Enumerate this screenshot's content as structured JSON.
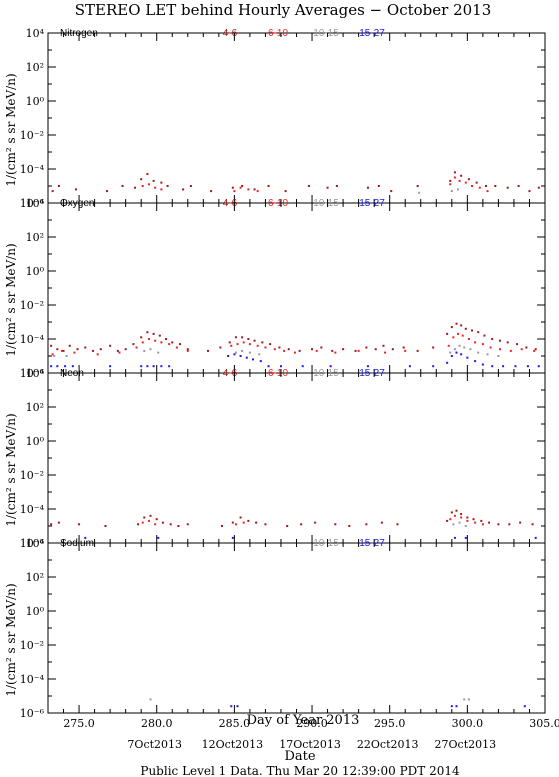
{
  "title": "STEREO LET behind Hourly Averages − October 2013",
  "x_axis_label": "Day of Year 2013",
  "x_tick_labels": [
    "275.0",
    "280.0",
    "285.0",
    "290.0",
    "295.0",
    "300.0",
    "305.0"
  ],
  "date_axis_label": "Date",
  "date_labels": [
    "7Oct2013",
    "12Oct2013",
    "17Oct2013",
    "22Oct2013",
    "27Oct2013"
  ],
  "footer": "Public Level 1 Data. Thu Mar 20 12:39:00 PDT 2014",
  "y_axis_label": "1/(cm² s sr MeV/n)",
  "energy_colors": {
    "4-6": "#a01818",
    "6-10": "#ee2222",
    "10-15": "#999999",
    "15-27": "#1a1aee"
  },
  "chart_data": [
    {
      "type": "scatter",
      "element": "Nitrogen",
      "legend": [
        "4-6",
        "6-10",
        "10-15",
        "15-27"
      ],
      "xlim": [
        273.0,
        305.0
      ],
      "ylim_exponent": [
        -6,
        4
      ],
      "y_scale": "log",
      "y_tick_labels": [
        "10⁴",
        "10²",
        "10⁰",
        "10⁻²",
        "10⁻⁴",
        "10⁻⁶"
      ],
      "grid": false,
      "series": [
        {
          "name": "4-6",
          "x": [
            273.3,
            273.7,
            274.8,
            276.8,
            277.8,
            278.6,
            279.0,
            279.4,
            279.8,
            280.3,
            280.7,
            281.7,
            282.2,
            283.5,
            284.9,
            285.5,
            286.3,
            287.2,
            288.3,
            289.8,
            291.0,
            291.6,
            293.6,
            294.3,
            295.1,
            296.8,
            298.9,
            299.2,
            299.6,
            300.1,
            300.6,
            301.2,
            301.8,
            302.6,
            303.3,
            304.0,
            304.6
          ],
          "y": [
            -5.3,
            -5.0,
            -5.2,
            -5.3,
            -5.0,
            -5.1,
            -4.6,
            -4.3,
            -4.7,
            -4.8,
            -5.0,
            -5.2,
            -5.0,
            -5.3,
            -5.1,
            -5.0,
            -5.2,
            -5.0,
            -5.3,
            -5.0,
            -5.1,
            -5.0,
            -5.1,
            -5.0,
            -5.3,
            -5.0,
            -4.7,
            -4.2,
            -4.4,
            -4.6,
            -4.8,
            -5.0,
            -5.0,
            -5.1,
            -5.0,
            -5.3,
            -5.1
          ]
        },
        {
          "name": "6-10",
          "x": [
            279.1,
            279.5,
            279.9,
            280.3,
            285.0,
            285.4,
            285.9,
            286.5,
            298.9,
            299.2,
            299.5,
            299.9,
            300.3,
            300.8,
            301.3
          ],
          "y": [
            -5.0,
            -4.9,
            -5.1,
            -5.2,
            -5.3,
            -5.1,
            -5.2,
            -5.3,
            -4.9,
            -4.5,
            -4.7,
            -4.8,
            -5.0,
            -5.1,
            -5.3
          ]
        },
        {
          "name": "10-15",
          "x": [
            296.9,
            299.0,
            299.4
          ],
          "y": [
            -5.4,
            -5.3,
            -5.2
          ]
        },
        {
          "name": "15-27",
          "x": [],
          "y": []
        }
      ]
    },
    {
      "type": "scatter",
      "element": "Oxygen",
      "legend": [
        "4-6",
        "6-10",
        "10-15",
        "15-27"
      ],
      "xlim": [
        273.0,
        305.0
      ],
      "ylim_exponent": [
        -6,
        4
      ],
      "y_scale": "log",
      "y_tick_labels": [
        "10⁴",
        "10²",
        "10⁰",
        "10⁻²",
        "10⁻⁴",
        "10⁻⁶"
      ],
      "grid": false,
      "series": [
        {
          "name": "4-6",
          "x": [
            273.2,
            273.6,
            274.0,
            274.4,
            274.9,
            275.4,
            275.9,
            276.4,
            277.0,
            277.5,
            278.0,
            278.5,
            279.0,
            279.4,
            279.8,
            280.2,
            280.6,
            281.0,
            281.5,
            282.0,
            283.3,
            284.1,
            284.7,
            285.1,
            285.5,
            285.9,
            286.3,
            286.8,
            287.3,
            287.9,
            288.5,
            289.2,
            290.0,
            290.6,
            291.3,
            292.0,
            292.8,
            293.5,
            294.1,
            294.6,
            295.2,
            295.9,
            296.8,
            297.8,
            298.7,
            299.0,
            299.3,
            299.6,
            299.9,
            300.3,
            300.7,
            301.1,
            301.6,
            302.1,
            302.6,
            303.2,
            303.8,
            304.4
          ],
          "y": [
            -4.4,
            -4.6,
            -4.7,
            -4.4,
            -4.6,
            -4.5,
            -4.7,
            -4.6,
            -4.4,
            -4.7,
            -4.6,
            -4.3,
            -3.9,
            -3.6,
            -3.7,
            -3.8,
            -4.0,
            -4.2,
            -4.3,
            -4.6,
            -4.7,
            -4.5,
            -4.2,
            -3.9,
            -3.9,
            -4.0,
            -4.1,
            -4.2,
            -4.3,
            -4.5,
            -4.6,
            -4.7,
            -4.6,
            -4.5,
            -4.7,
            -4.6,
            -4.7,
            -4.5,
            -4.6,
            -4.4,
            -4.6,
            -4.5,
            -4.7,
            -4.5,
            -3.7,
            -3.3,
            -3.1,
            -3.2,
            -3.4,
            -3.5,
            -3.6,
            -3.8,
            -4.0,
            -4.1,
            -4.2,
            -4.3,
            -4.5,
            -4.6
          ]
        },
        {
          "name": "6-10",
          "x": [
            273.3,
            273.9,
            274.7,
            276.2,
            277.6,
            278.7,
            279.1,
            279.5,
            279.9,
            280.3,
            280.8,
            281.3,
            282.0,
            284.8,
            285.2,
            285.6,
            286.0,
            286.5,
            287.0,
            287.6,
            288.2,
            288.9,
            290.3,
            291.5,
            293.0,
            294.7,
            296.0,
            298.8,
            299.1,
            299.4,
            299.7,
            300.1,
            300.5,
            301.0,
            301.5,
            302.1,
            302.8,
            303.5,
            304.3
          ],
          "y": [
            -4.9,
            -4.7,
            -4.8,
            -4.9,
            -4.8,
            -4.5,
            -4.2,
            -4.0,
            -4.1,
            -4.2,
            -4.3,
            -4.5,
            -4.7,
            -4.4,
            -4.3,
            -4.2,
            -4.3,
            -4.4,
            -4.5,
            -4.6,
            -4.7,
            -4.8,
            -4.7,
            -4.8,
            -4.7,
            -4.8,
            -4.7,
            -4.4,
            -3.9,
            -3.7,
            -3.8,
            -4.0,
            -4.2,
            -4.3,
            -4.5,
            -4.6,
            -4.7,
            -4.6,
            -4.7
          ]
        },
        {
          "name": "10-15",
          "x": [
            273.4,
            274.2,
            279.2,
            279.6,
            280.1,
            285.1,
            285.5,
            286.0,
            286.6,
            298.9,
            299.2,
            299.5,
            299.8,
            300.2,
            300.7,
            301.3,
            302.0
          ],
          "y": [
            -5.0,
            -5.0,
            -4.7,
            -4.6,
            -4.8,
            -4.8,
            -4.7,
            -4.8,
            -4.9,
            -4.8,
            -4.6,
            -4.4,
            -4.5,
            -4.6,
            -4.8,
            -4.9,
            -5.0
          ]
        },
        {
          "name": "15-27",
          "x": [
            273.2,
            273.6,
            274.1,
            274.6,
            277.0,
            279.0,
            279.4,
            279.8,
            280.3,
            280.8,
            284.6,
            285.0,
            285.4,
            285.8,
            286.2,
            286.7,
            287.2,
            288.0,
            289.4,
            291.2,
            293.6,
            296.3,
            297.8,
            298.7,
            299.0,
            299.3,
            299.6,
            300.0,
            300.5,
            301.0,
            301.6,
            302.3,
            303.1,
            303.9,
            304.6
          ],
          "y": [
            -5.6,
            -5.6,
            -5.6,
            -5.6,
            -5.6,
            -5.6,
            -5.6,
            -5.6,
            -5.6,
            -5.6,
            -5.0,
            -4.9,
            -5.0,
            -5.1,
            -5.2,
            -5.3,
            -5.6,
            -5.6,
            -5.6,
            -5.6,
            -5.6,
            -5.6,
            -5.6,
            -5.4,
            -5.0,
            -4.8,
            -4.9,
            -5.1,
            -5.3,
            -5.5,
            -5.6,
            -5.6,
            -5.6,
            -5.6,
            -5.6
          ]
        }
      ]
    },
    {
      "type": "scatter",
      "element": "Neon",
      "legend": [
        "4-6",
        "6-10",
        "10-15",
        "15-27"
      ],
      "xlim": [
        273.0,
        305.0
      ],
      "ylim_exponent": [
        -6,
        4
      ],
      "y_scale": "log",
      "y_tick_labels": [
        "10⁴",
        "10²",
        "10⁰",
        "10⁻²",
        "10⁻⁴",
        "10⁻⁶"
      ],
      "grid": false,
      "series": [
        {
          "name": "4-6",
          "x": [
            273.2,
            273.7,
            275.0,
            276.7,
            278.8,
            279.2,
            279.6,
            280.0,
            280.4,
            280.9,
            281.4,
            282.0,
            284.2,
            284.9,
            285.4,
            285.9,
            286.4,
            287.0,
            288.4,
            289.3,
            290.2,
            291.5,
            292.4,
            293.5,
            294.5,
            295.5,
            298.7,
            299.0,
            299.3,
            299.6,
            300.0,
            300.4,
            300.9,
            301.4,
            302.0,
            302.7,
            303.4,
            304.2
          ],
          "y": [
            -4.9,
            -4.8,
            -4.9,
            -5.0,
            -4.9,
            -4.5,
            -4.4,
            -4.6,
            -4.8,
            -4.9,
            -5.0,
            -4.9,
            -5.0,
            -4.8,
            -4.5,
            -4.7,
            -4.8,
            -4.9,
            -5.0,
            -4.9,
            -4.8,
            -4.9,
            -5.0,
            -4.9,
            -4.8,
            -4.9,
            -4.7,
            -4.2,
            -4.1,
            -4.3,
            -4.5,
            -4.6,
            -4.7,
            -4.8,
            -4.9,
            -4.9,
            -4.8,
            -4.9
          ]
        },
        {
          "name": "6-10",
          "x": [
            279.1,
            279.5,
            279.9,
            285.1,
            285.6,
            298.9,
            299.2,
            299.6,
            300.0,
            300.5,
            301.0
          ],
          "y": [
            -4.8,
            -4.7,
            -4.9,
            -4.9,
            -4.8,
            -4.6,
            -4.4,
            -4.5,
            -4.7,
            -4.8,
            -4.9
          ]
        },
        {
          "name": "10-15",
          "x": [
            299.1,
            299.5,
            299.9
          ],
          "y": [
            -4.9,
            -4.8,
            -5.0
          ]
        },
        {
          "name": "15-27",
          "x": [
            275.4,
            280.1,
            284.9,
            299.2,
            299.9,
            304.4
          ],
          "y": [
            -5.7,
            -5.7,
            -5.7,
            -5.7,
            -5.7,
            -5.7
          ]
        }
      ]
    },
    {
      "type": "scatter",
      "element": "Sodium",
      "legend": [
        "10-15",
        "15-27"
      ],
      "xlim": [
        273.0,
        305.0
      ],
      "ylim_exponent": [
        -6,
        4
      ],
      "y_scale": "log",
      "y_tick_labels": [
        "10⁴",
        "10²",
        "10⁰",
        "10⁻²",
        "10⁻⁴",
        "10⁻⁶"
      ],
      "grid": false,
      "series": [
        {
          "name": "10-15",
          "x": [
            279.6,
            299.8,
            300.1
          ],
          "y": [
            -5.2,
            -5.2,
            -5.2
          ]
        },
        {
          "name": "15-27",
          "x": [
            284.8,
            285.2,
            299.0,
            299.3,
            303.7
          ],
          "y": [
            -5.6,
            -5.6,
            -5.6,
            -5.6,
            -5.6
          ]
        }
      ]
    }
  ]
}
